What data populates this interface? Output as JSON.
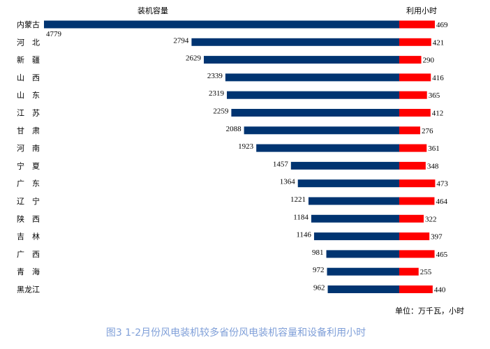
{
  "chart_data": {
    "type": "bar",
    "orientation": "horizontal-butterfly",
    "caption": "图3  1-2月份风电装机较多省份风电装机容量和设备利用小时",
    "unit_note": "单位：万千瓦，小时",
    "categories": [
      "内蒙古",
      "河　北",
      "新　疆",
      "山　西",
      "山　东",
      "江　苏",
      "甘　肃",
      "河　南",
      "宁　夏",
      "广　东",
      "辽　宁",
      "陕　西",
      "吉　林",
      "广　西",
      "青　海",
      "黑龙江"
    ],
    "series": [
      {
        "name": "装机容量",
        "color": "#003471",
        "direction": "left",
        "values": [
          4779,
          2794,
          2629,
          2339,
          2319,
          2259,
          2088,
          1923,
          1457,
          1364,
          1221,
          1184,
          1146,
          981,
          972,
          962
        ]
      },
      {
        "name": "利用小时",
        "color": "#ff0000",
        "direction": "right",
        "values": [
          469,
          421,
          290,
          416,
          365,
          412,
          276,
          361,
          348,
          473,
          464,
          322,
          397,
          465,
          255,
          440
        ]
      }
    ],
    "grid": false
  }
}
